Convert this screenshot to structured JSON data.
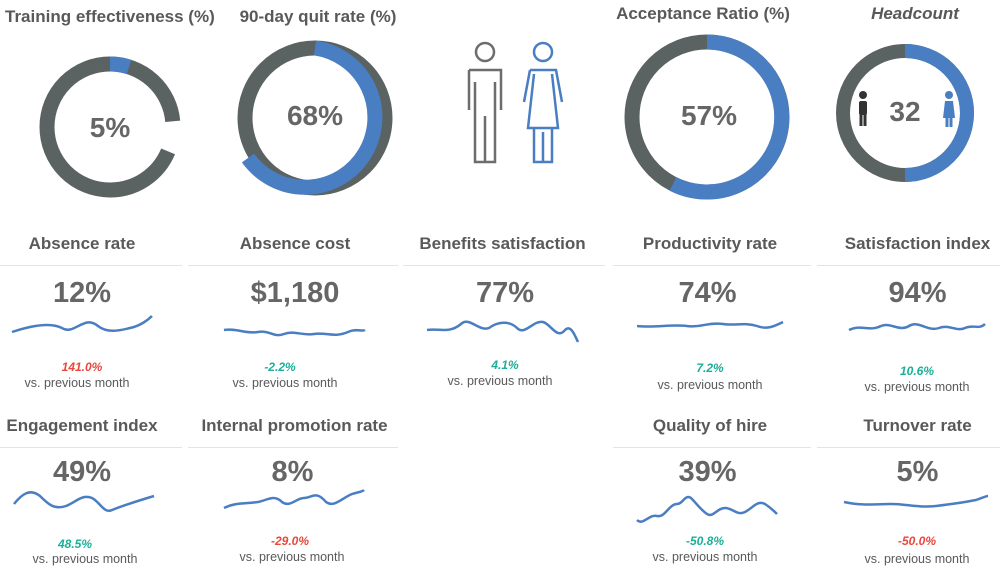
{
  "colors": {
    "blue": "#4a7ec2",
    "gray": "#5b6262",
    "positive": "#1aaf98",
    "negative": "#e8473b",
    "text": "#595959",
    "value": "#666666"
  },
  "donuts": [
    {
      "title": "Training effectiveness (%)",
      "label": "5%",
      "value": 5
    },
    {
      "title": "90-day quit rate (%)",
      "label": "68%",
      "value": 68
    },
    {
      "title": "Acceptance Ratio (%)",
      "label": "57%",
      "value": 57
    },
    {
      "title": "Headcount",
      "label": "32",
      "value": 50
    }
  ],
  "gender_icons": {
    "male": "male-person-icon",
    "female": "female-person-icon"
  },
  "kpis": [
    {
      "title": "Absence rate",
      "value": "12%",
      "change": "141.0%",
      "direction": "negative",
      "note": "vs. previous month"
    },
    {
      "title": "Absence cost",
      "value": "$1,180",
      "change": "-2.2%",
      "direction": "positive",
      "note": "vs. previous month"
    },
    {
      "title": "Benefits satisfaction",
      "value": "77%",
      "change": "4.1%",
      "direction": "positive",
      "note": "vs. previous month"
    },
    {
      "title": "Productivity rate",
      "value": "74%",
      "change": "7.2%",
      "direction": "positive",
      "note": "vs. previous month"
    },
    {
      "title": "Satisfaction index",
      "value": "94%",
      "change": "10.6%",
      "direction": "positive",
      "note": "vs. previous month"
    },
    {
      "title": "Engagement index",
      "value": "49%",
      "change": "48.5%",
      "direction": "positive",
      "note": "vs. previous month"
    },
    {
      "title": "Internal promotion rate",
      "value": "8%",
      "change": "-29.0%",
      "direction": "negative",
      "note": "vs. previous month"
    },
    {
      "title": "Quality of hire",
      "value": "39%",
      "change": "-50.8%",
      "direction": "positive",
      "note": "vs. previous month"
    },
    {
      "title": "Turnover rate",
      "value": "5%",
      "change": "-50.0%",
      "direction": "negative",
      "note": "vs. previous month"
    }
  ]
}
